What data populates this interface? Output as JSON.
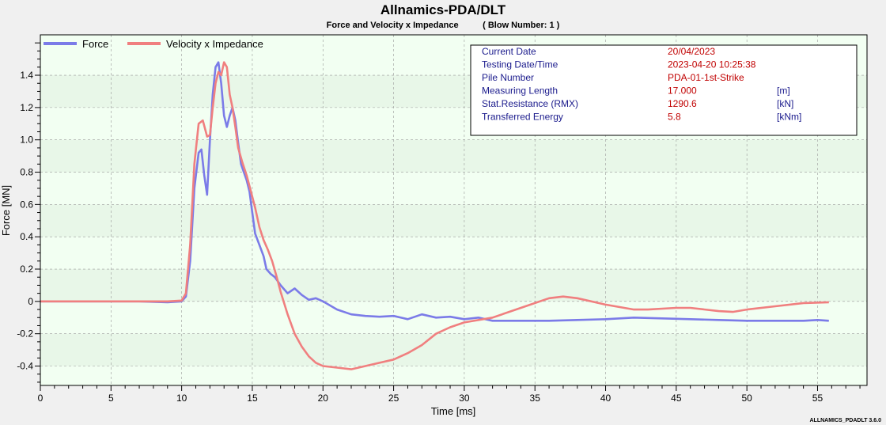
{
  "title": "Allnamics-PDA/DLT",
  "subtitle": "Force and Velocity x Impedance          ( Blow Number: 1 )",
  "footer": "ALLNAMICS_PDADLT 3.6.0",
  "info": {
    "labels": [
      "Current Date",
      "Testing Date/Time",
      "Pile Number",
      "Measuring Length",
      "Stat.Resistance (RMX)",
      "Transferred Energy"
    ],
    "values": [
      "20/04/2023",
      "2023-04-20 10:25:38",
      "PDA-01-1st-Strike",
      "17.000",
      "1290.6",
      "5.8"
    ],
    "units": [
      "",
      "",
      "",
      "[m]",
      "[kN]",
      "[kNm]"
    ]
  },
  "colors": {
    "force": "#7b7be8",
    "velocity": "#f07f7f",
    "plot_bg": "#f2fff2",
    "band": "#e8f7e8"
  },
  "chart_data": {
    "type": "line",
    "xlabel": "Time [ms]",
    "ylabel": "Force [MN]",
    "xlim": [
      0,
      58.5
    ],
    "ylim": [
      -0.52,
      1.65
    ],
    "xticks": [
      0,
      5,
      10,
      15,
      20,
      25,
      30,
      35,
      40,
      45,
      50,
      55
    ],
    "yticks": [
      -0.4,
      -0.2,
      0,
      0.2,
      0.4,
      0.6,
      0.8,
      1.0,
      1.2,
      1.4
    ],
    "ytick_labels": [
      "-0.4",
      "-0.2",
      "0",
      "0.2",
      "0.4",
      "0.6",
      "0.8",
      "1.0",
      "1.2",
      "1.4"
    ],
    "legend_position": "top-left",
    "grid": true,
    "series": [
      {
        "name": "Force",
        "x": [
          0,
          7,
          9,
          10,
          10.3,
          10.6,
          10.9,
          11.2,
          11.4,
          11.6,
          11.8,
          12.0,
          12.2,
          12.4,
          12.6,
          12.8,
          13.0,
          13.2,
          13.4,
          13.6,
          13.8,
          14.0,
          14.2,
          14.4,
          14.6,
          14.8,
          15.0,
          15.2,
          15.5,
          15.8,
          16.0,
          16.3,
          16.6,
          17.0,
          17.5,
          18.0,
          18.5,
          19.0,
          19.5,
          20.0,
          21.0,
          22.0,
          23.0,
          24.0,
          25.0,
          26.0,
          27.0,
          28.0,
          29.0,
          30.0,
          31.0,
          32.0,
          34.0,
          36.0,
          38.0,
          40.0,
          42.0,
          44.0,
          46.0,
          48.0,
          50.0,
          52.0,
          54.0,
          55.0,
          55.8
        ],
        "y": [
          0,
          0,
          -0.005,
          0,
          0.03,
          0.25,
          0.7,
          0.92,
          0.94,
          0.78,
          0.66,
          1.0,
          1.28,
          1.45,
          1.48,
          1.35,
          1.15,
          1.08,
          1.15,
          1.2,
          1.12,
          0.98,
          0.85,
          0.8,
          0.75,
          0.68,
          0.55,
          0.42,
          0.35,
          0.28,
          0.2,
          0.17,
          0.15,
          0.1,
          0.05,
          0.08,
          0.04,
          0.01,
          0.02,
          0.0,
          -0.05,
          -0.08,
          -0.09,
          -0.095,
          -0.09,
          -0.11,
          -0.08,
          -0.1,
          -0.095,
          -0.11,
          -0.1,
          -0.12,
          -0.12,
          -0.12,
          -0.115,
          -0.11,
          -0.1,
          -0.105,
          -0.11,
          -0.115,
          -0.12,
          -0.12,
          -0.12,
          -0.115,
          -0.12
        ]
      },
      {
        "name": "Velocity x Impedance",
        "x": [
          0,
          5,
          9,
          10,
          10.3,
          10.6,
          10.9,
          11.2,
          11.5,
          11.8,
          12.0,
          12.2,
          12.4,
          12.6,
          12.8,
          13.0,
          13.2,
          13.4,
          13.6,
          13.8,
          14.0,
          14.3,
          14.6,
          14.9,
          15.2,
          15.5,
          15.8,
          16.1,
          16.4,
          16.7,
          17.0,
          17.5,
          18.0,
          18.5,
          19.0,
          19.5,
          20.0,
          21.0,
          22.0,
          23.0,
          24.0,
          25.0,
          26.0,
          27.0,
          28.0,
          29.0,
          30.0,
          32.0,
          34.0,
          36.0,
          37.0,
          38.0,
          40.0,
          42.0,
          43.0,
          45.0,
          46.0,
          48.0,
          49.0,
          50.0,
          52.0,
          54.0,
          55.8
        ],
        "y": [
          0,
          0,
          0,
          0.005,
          0.05,
          0.35,
          0.85,
          1.1,
          1.12,
          1.02,
          1.03,
          1.2,
          1.35,
          1.42,
          1.4,
          1.48,
          1.45,
          1.28,
          1.2,
          1.08,
          0.95,
          0.86,
          0.78,
          0.68,
          0.58,
          0.46,
          0.38,
          0.32,
          0.25,
          0.16,
          0.06,
          -0.08,
          -0.2,
          -0.28,
          -0.34,
          -0.38,
          -0.4,
          -0.41,
          -0.42,
          -0.4,
          -0.38,
          -0.36,
          -0.32,
          -0.27,
          -0.2,
          -0.16,
          -0.13,
          -0.1,
          -0.04,
          0.02,
          0.03,
          0.02,
          -0.02,
          -0.05,
          -0.05,
          -0.04,
          -0.04,
          -0.06,
          -0.065,
          -0.05,
          -0.03,
          -0.01,
          -0.005
        ]
      }
    ]
  }
}
